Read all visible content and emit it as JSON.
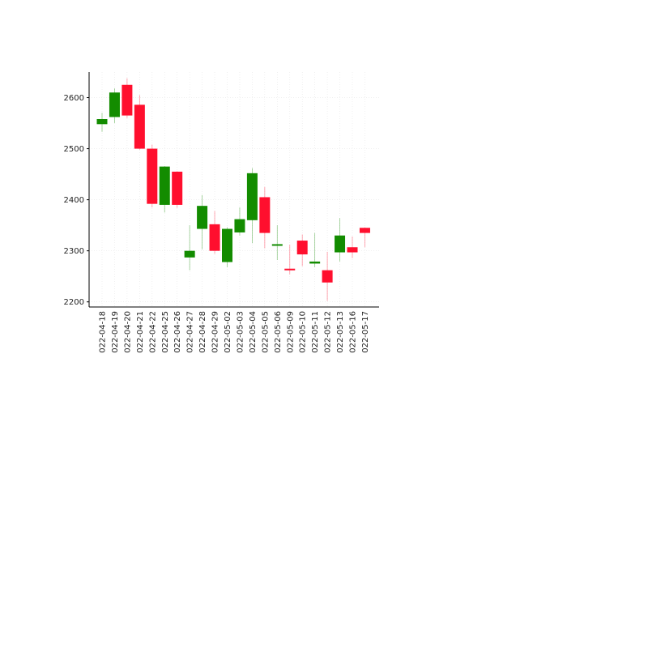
{
  "chart_data": {
    "type": "candlestick",
    "title": "",
    "xlabel": "",
    "ylabel": "",
    "ylim": [
      2190,
      2650
    ],
    "yticks": [
      2200,
      2300,
      2400,
      2500,
      2600
    ],
    "grid": true,
    "legend": "none",
    "colors": {
      "up": "#138c00",
      "down": "#ff0f2e"
    },
    "categories": [
      "022-04-18",
      "022-04-19",
      "022-04-20",
      "022-04-21",
      "022-04-22",
      "022-04-25",
      "022-04-26",
      "022-04-27",
      "022-04-28",
      "022-04-29",
      "022-05-02",
      "022-05-03",
      "022-05-04",
      "022-05-05",
      "022-05-06",
      "022-05-09",
      "022-05-10",
      "022-05-11",
      "022-05-12",
      "022-05-13",
      "022-05-16",
      "022-05-17"
    ],
    "series": [
      {
        "open": [
          2548,
          2562,
          2625,
          2586,
          2500,
          2390,
          2455,
          2287,
          2343,
          2352,
          2278,
          2336,
          2360,
          2405,
          2311,
          2265,
          2320,
          2275,
          2262,
          2297,
          2307,
          2345
        ],
        "close": [
          2558,
          2610,
          2565,
          2500,
          2392,
          2465,
          2390,
          2300,
          2388,
          2300,
          2343,
          2362,
          2452,
          2335,
          2313,
          2262,
          2293,
          2279,
          2238,
          2330,
          2297,
          2335
        ],
        "high": [
          2570,
          2618,
          2638,
          2605,
          2508,
          2466,
          2456,
          2350,
          2409,
          2378,
          2346,
          2385,
          2462,
          2425,
          2350,
          2312,
          2332,
          2335,
          2298,
          2364,
          2328,
          2346
        ],
        "low": [
          2533,
          2550,
          2560,
          2498,
          2385,
          2375,
          2384,
          2262,
          2303,
          2294,
          2268,
          2330,
          2315,
          2305,
          2282,
          2254,
          2270,
          2268,
          2202,
          2279,
          2286,
          2307
        ]
      }
    ]
  }
}
